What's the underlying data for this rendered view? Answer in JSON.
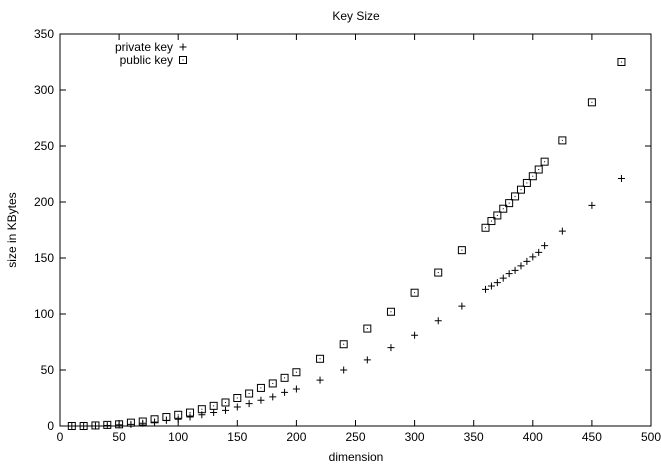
{
  "chart_data": {
    "type": "scatter",
    "title": "Key Size",
    "xlabel": "dimension",
    "ylabel": "size in KBytes",
    "xlim": [
      0,
      500
    ],
    "ylim": [
      0,
      350
    ],
    "xticks": [
      0,
      50,
      100,
      150,
      200,
      250,
      300,
      350,
      400,
      450,
      500
    ],
    "yticks": [
      0,
      50,
      100,
      150,
      200,
      250,
      300,
      350
    ],
    "grid": false,
    "legend_position": "top-left",
    "series": [
      {
        "name": "private key",
        "marker": "plus",
        "x": [
          10,
          20,
          30,
          40,
          50,
          60,
          70,
          80,
          90,
          100,
          110,
          120,
          130,
          140,
          150,
          160,
          170,
          180,
          190,
          200,
          220,
          240,
          260,
          280,
          300,
          320,
          340,
          360,
          365,
          370,
          375,
          380,
          385,
          390,
          395,
          400,
          405,
          410,
          425,
          450,
          475
        ],
        "y": [
          0,
          0,
          0,
          0.5,
          1,
          1.5,
          2.5,
          3.5,
          5,
          6,
          8,
          10,
          12,
          14,
          17,
          20,
          23,
          26,
          30,
          33,
          41,
          50,
          59,
          70,
          81,
          94,
          107,
          122,
          125,
          128,
          132,
          136,
          139,
          143,
          147,
          151,
          155,
          161,
          174,
          197,
          221
        ]
      },
      {
        "name": "public key",
        "marker": "square",
        "x": [
          10,
          20,
          30,
          40,
          50,
          60,
          70,
          80,
          90,
          100,
          110,
          120,
          130,
          140,
          150,
          160,
          170,
          180,
          190,
          200,
          220,
          240,
          260,
          280,
          300,
          320,
          340,
          360,
          365,
          370,
          375,
          380,
          385,
          390,
          395,
          400,
          405,
          410,
          425,
          450,
          475
        ],
        "y": [
          0,
          0,
          0.5,
          1,
          1.5,
          3,
          4,
          6,
          8,
          10,
          12,
          15,
          18,
          21,
          25,
          29,
          34,
          38,
          43,
          48,
          60,
          73,
          87,
          102,
          119,
          137,
          157,
          177,
          183,
          188,
          194,
          199,
          205,
          211,
          217,
          223,
          229,
          236,
          255,
          289,
          325
        ]
      }
    ]
  }
}
